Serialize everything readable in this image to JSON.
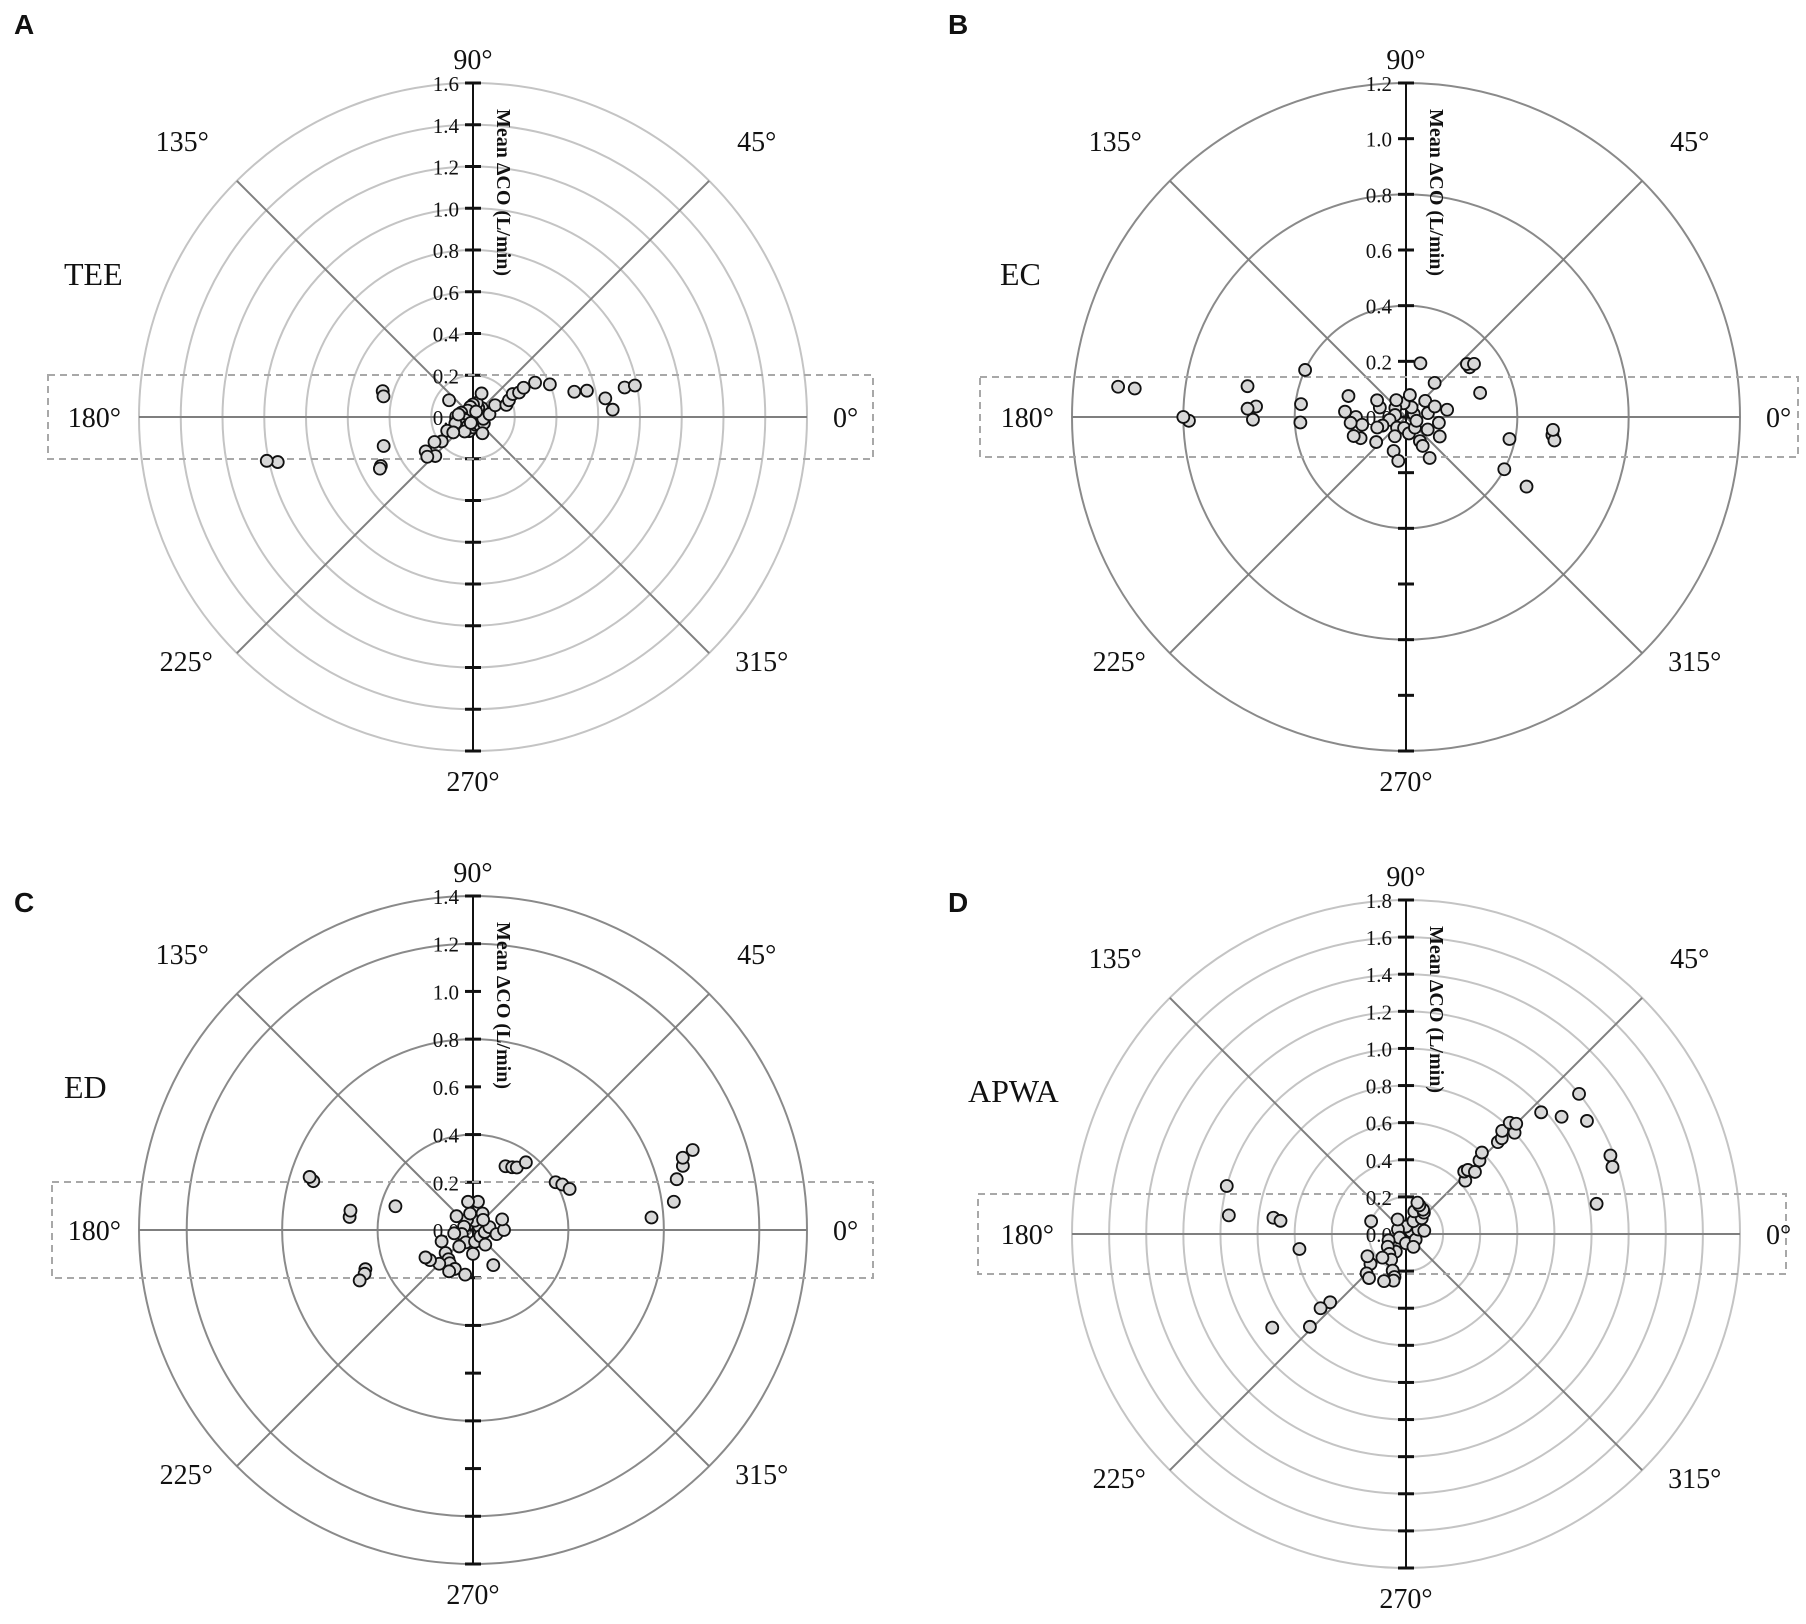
{
  "colors": {
    "light_ring": "#c4c4c4",
    "dark_ring": "#8a8a8a",
    "spoke": "#7f7f7f",
    "axis": "#111111",
    "marker_fill": "#d8d8d8",
    "marker_edge": "#111111",
    "exclusion_box": "#a8a8a8"
  },
  "chart_data": [
    {
      "type": "scatter",
      "coordinate_system": "polar",
      "panel_letter": "A",
      "method_label": "TEE",
      "radial_axis_title": "Mean ΔCO (L/min)",
      "radial_range": [
        0,
        1.6
      ],
      "radial_ticks": [
        "1.6",
        "1.4",
        "1.2",
        "1.0",
        "0.8",
        "0.6",
        "0.4",
        "0.2",
        "0.0"
      ],
      "angle_labels": [
        "0°",
        "45°",
        "90°",
        "135°",
        "180°",
        "225°",
        "270°",
        "315°"
      ],
      "ring_style": "light",
      "exclusion_zone_deg": 15,
      "points": [
        [
          0.04,
          15
        ],
        [
          0.05,
          30
        ],
        [
          0.06,
          45
        ],
        [
          0.05,
          60
        ],
        [
          0.07,
          75
        ],
        [
          0.06,
          90
        ],
        [
          0.05,
          105
        ],
        [
          0.04,
          130
        ],
        [
          0.06,
          160
        ],
        [
          0.05,
          185
        ],
        [
          0.04,
          200
        ],
        [
          0.06,
          220
        ],
        [
          0.05,
          240
        ],
        [
          0.07,
          255
        ],
        [
          0.05,
          270
        ],
        [
          0.04,
          290
        ],
        [
          0.05,
          310
        ],
        [
          0.06,
          330
        ],
        [
          0.05,
          350
        ],
        [
          0.08,
          10
        ],
        [
          0.09,
          200
        ],
        [
          0.08,
          240
        ],
        [
          0.09,
          300
        ],
        [
          0.07,
          170
        ],
        [
          0.03,
          60
        ],
        [
          0.03,
          250
        ],
        [
          0.12,
          70
        ],
        [
          0.12,
          28
        ],
        [
          0.17,
          20
        ],
        [
          0.19,
          25
        ],
        [
          0.22,
          30
        ],
        [
          0.25,
          28
        ],
        [
          0.28,
          30
        ],
        [
          0.34,
          29
        ],
        [
          0.4,
          23
        ],
        [
          0.5,
          14
        ],
        [
          0.56,
          13
        ],
        [
          0.64,
          8
        ],
        [
          0.67,
          3
        ],
        [
          0.74,
          11
        ],
        [
          0.79,
          11
        ],
        [
          0.14,
          145
        ],
        [
          0.14,
          208
        ],
        [
          0.12,
          218
        ],
        [
          0.19,
          218
        ],
        [
          0.22,
          213
        ],
        [
          0.26,
          226
        ],
        [
          0.28,
          216
        ],
        [
          0.29,
          221
        ],
        [
          0.45,
          198
        ],
        [
          0.5,
          208
        ],
        [
          0.51,
          209
        ],
        [
          0.45,
          164
        ],
        [
          0.44,
          167
        ],
        [
          0.96,
          193
        ],
        [
          1.01,
          192
        ]
      ]
    },
    {
      "type": "scatter",
      "coordinate_system": "polar",
      "panel_letter": "B",
      "method_label": "EC",
      "radial_axis_title": "Mean ΔCO (L/min)",
      "radial_range": [
        0,
        1.2
      ],
      "radial_ticks": [
        "1.2",
        "1.0",
        "0.8",
        "0.6",
        "0.4",
        "0.2",
        "0.0"
      ],
      "angle_labels": [
        "0°",
        "45°",
        "90°",
        "135°",
        "180°",
        "225°",
        "270°",
        "315°"
      ],
      "ring_style": "dark",
      "exclusion_zone_deg": 15,
      "points": [
        [
          0.03,
          20
        ],
        [
          0.04,
          60
        ],
        [
          0.05,
          100
        ],
        [
          0.05,
          140
        ],
        [
          0.04,
          170
        ],
        [
          0.06,
          190
        ],
        [
          0.05,
          230
        ],
        [
          0.04,
          260
        ],
        [
          0.06,
          280
        ],
        [
          0.05,
          310
        ],
        [
          0.04,
          340
        ],
        [
          0.08,
          10
        ],
        [
          0.09,
          40
        ],
        [
          0.08,
          80
        ],
        [
          0.07,
          120
        ],
        [
          0.1,
          160
        ],
        [
          0.09,
          200
        ],
        [
          0.08,
          240
        ],
        [
          0.1,
          300
        ],
        [
          0.09,
          330
        ],
        [
          0.12,
          350
        ],
        [
          0.11,
          20
        ],
        [
          0.12,
          150
        ],
        [
          0.11,
          200
        ],
        [
          0.13,
          250
        ],
        [
          0.12,
          300
        ],
        [
          0.14,
          330
        ],
        [
          0.15,
          10
        ],
        [
          0.14,
          220
        ],
        [
          0.18,
          180
        ],
        [
          0.16,
          190
        ],
        [
          0.18,
          205
        ],
        [
          0.2,
          200
        ],
        [
          0.2,
          186
        ],
        [
          0.22,
          175
        ],
        [
          0.16,
          260
        ],
        [
          0.17,
          300
        ],
        [
          0.16,
          50
        ],
        [
          0.2,
          75
        ],
        [
          0.22,
          160
        ],
        [
          0.29,
          38
        ],
        [
          0.29,
          41
        ],
        [
          0.31,
          38
        ],
        [
          0.28,
          18
        ],
        [
          0.53,
          353
        ],
        [
          0.54,
          351
        ],
        [
          0.53,
          355
        ],
        [
          0.4,
          332
        ],
        [
          0.5,
          330
        ],
        [
          0.38,
          348
        ],
        [
          0.38,
          183
        ],
        [
          0.38,
          173
        ],
        [
          0.4,
          155
        ],
        [
          0.55,
          181
        ],
        [
          0.54,
          176
        ],
        [
          0.58,
          169
        ],
        [
          0.57,
          177
        ],
        [
          0.78,
          181
        ],
        [
          0.8,
          180
        ],
        [
          0.98,
          174
        ],
        [
          1.04,
          174
        ]
      ]
    },
    {
      "type": "scatter",
      "coordinate_system": "polar",
      "panel_letter": "C",
      "method_label": "ED",
      "radial_axis_title": "Mean ΔCO (L/min)",
      "radial_range": [
        0,
        1.4
      ],
      "radial_ticks": [
        "1.4",
        "1.2",
        "1.0",
        "0.8",
        "0.6",
        "0.4",
        "0.2",
        "0.0"
      ],
      "angle_labels": [
        "0°",
        "45°",
        "90°",
        "135°",
        "180°",
        "225°",
        "270°",
        "315°"
      ],
      "ring_style": "dark",
      "exclusion_zone_deg": 15,
      "points": [
        [
          0.03,
          30
        ],
        [
          0.04,
          80
        ],
        [
          0.05,
          120
        ],
        [
          0.04,
          160
        ],
        [
          0.05,
          200
        ],
        [
          0.06,
          240
        ],
        [
          0.05,
          280
        ],
        [
          0.04,
          320
        ],
        [
          0.05,
          350
        ],
        [
          0.07,
          10
        ],
        [
          0.08,
          60
        ],
        [
          0.07,
          100
        ],
        [
          0.09,
          140
        ],
        [
          0.08,
          190
        ],
        [
          0.09,
          230
        ],
        [
          0.1,
          270
        ],
        [
          0.08,
          310
        ],
        [
          0.06,
          45
        ],
        [
          0.1,
          350
        ],
        [
          0.12,
          80
        ],
        [
          0.12,
          100
        ],
        [
          0.13,
          0
        ],
        [
          0.13,
          20
        ],
        [
          0.14,
          200
        ],
        [
          0.15,
          220
        ],
        [
          0.16,
          230
        ],
        [
          0.17,
          235
        ],
        [
          0.18,
          245
        ],
        [
          0.2,
          240
        ],
        [
          0.2,
          225
        ],
        [
          0.22,
          215
        ],
        [
          0.23,
          210
        ],
        [
          0.19,
          260
        ],
        [
          0.17,
          300
        ],
        [
          0.3,
          63
        ],
        [
          0.31,
          58
        ],
        [
          0.32,
          55
        ],
        [
          0.36,
          52
        ],
        [
          0.4,
          30
        ],
        [
          0.42,
          27
        ],
        [
          0.44,
          23
        ],
        [
          0.75,
          4
        ],
        [
          0.85,
          8
        ],
        [
          0.92,
          17
        ],
        [
          0.93,
          19
        ],
        [
          0.98,
          20
        ],
        [
          0.88,
          14
        ],
        [
          0.34,
          163
        ],
        [
          0.52,
          174
        ],
        [
          0.52,
          171
        ],
        [
          0.7,
          163
        ],
        [
          0.72,
          162
        ],
        [
          0.48,
          200
        ],
        [
          0.49,
          202
        ],
        [
          0.52,
          204
        ]
      ]
    },
    {
      "type": "scatter",
      "coordinate_system": "polar",
      "panel_letter": "D",
      "method_label": "APWA",
      "radial_axis_title": "Mean ΔCO (L/min)",
      "radial_range": [
        0,
        1.8
      ],
      "radial_ticks": [
        "1.8",
        "1.6",
        "1.4",
        "1.2",
        "1.0",
        "0.8",
        "0.6",
        "0.4",
        "0.2",
        "0.0"
      ],
      "angle_labels": [
        "0°",
        "45°",
        "90°",
        "135°",
        "180°",
        "225°",
        "270°",
        "315°"
      ],
      "ring_style": "light",
      "exclusion_zone_deg": 15,
      "points": [
        [
          0.03,
          30
        ],
        [
          0.04,
          90
        ],
        [
          0.05,
          150
        ],
        [
          0.04,
          210
        ],
        [
          0.05,
          270
        ],
        [
          0.06,
          330
        ],
        [
          0.07,
          20
        ],
        [
          0.08,
          60
        ],
        [
          0.09,
          120
        ],
        [
          0.1,
          200
        ],
        [
          0.11,
          240
        ],
        [
          0.08,
          300
        ],
        [
          0.12,
          45
        ],
        [
          0.13,
          70
        ],
        [
          0.15,
          50
        ],
        [
          0.16,
          55
        ],
        [
          0.17,
          65
        ],
        [
          0.18,
          70
        ],
        [
          0.12,
          215
        ],
        [
          0.14,
          230
        ],
        [
          0.16,
          240
        ],
        [
          0.18,
          225
        ],
        [
          0.21,
          250
        ],
        [
          0.24,
          255
        ],
        [
          0.26,
          255
        ],
        [
          0.28,
          245
        ],
        [
          0.25,
          220
        ],
        [
          0.3,
          225
        ],
        [
          0.31,
          230
        ],
        [
          0.2,
          160
        ],
        [
          0.24,
          210
        ],
        [
          0.1,
          10
        ],
        [
          0.43,
          42
        ],
        [
          0.46,
          47
        ],
        [
          0.48,
          46
        ],
        [
          0.5,
          42
        ],
        [
          0.56,
          45
        ],
        [
          0.6,
          47
        ],
        [
          0.7,
          45
        ],
        [
          0.73,
          45
        ],
        [
          0.76,
          47
        ],
        [
          0.8,
          43
        ],
        [
          0.82,
          47
        ],
        [
          0.84,
          45
        ],
        [
          0.98,
          42
        ],
        [
          1.05,
          37
        ],
        [
          1.2,
          39
        ],
        [
          1.15,
          32
        ],
        [
          1.18,
          21
        ],
        [
          1.17,
          18
        ],
        [
          1.04,
          9
        ],
        [
          0.58,
          188
        ],
        [
          0.55,
          222
        ],
        [
          0.61,
          221
        ],
        [
          0.72,
          224
        ],
        [
          0.88,
          215
        ],
        [
          0.72,
          173
        ],
        [
          0.68,
          174
        ],
        [
          0.96,
          174
        ],
        [
          1.0,
          165
        ]
      ]
    }
  ]
}
